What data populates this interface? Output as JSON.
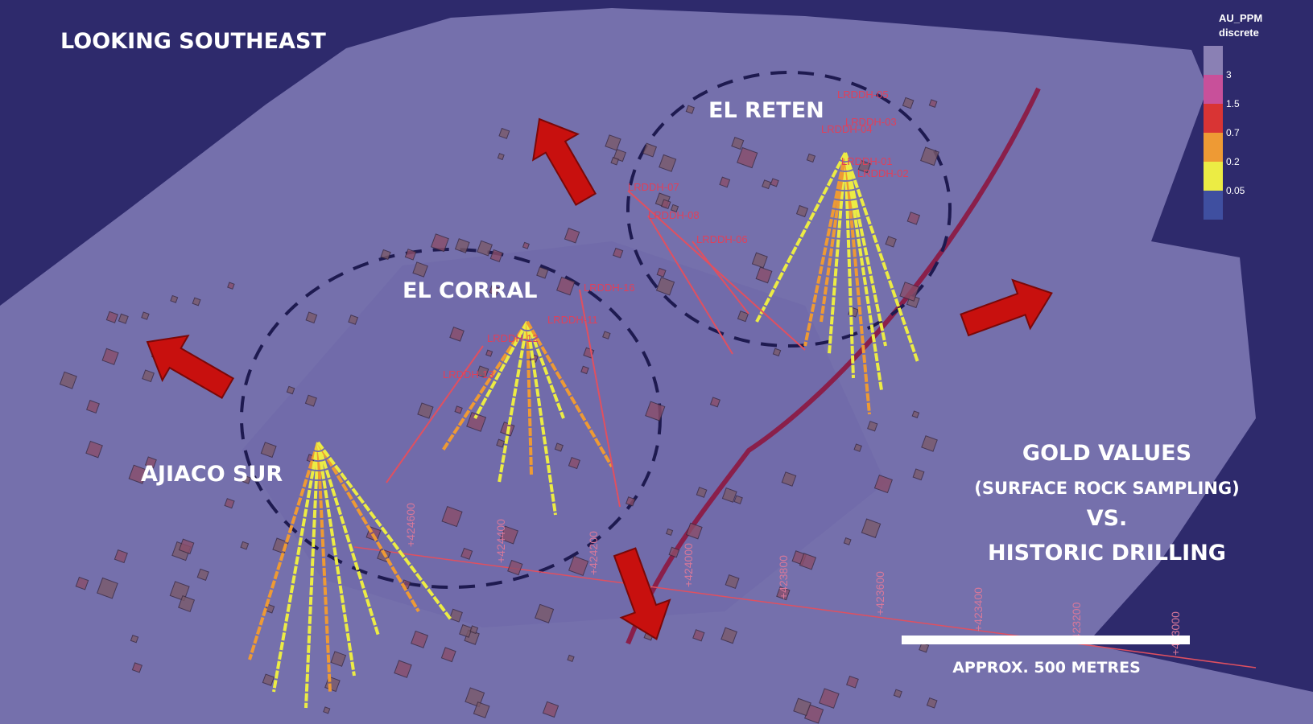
{
  "title": "LOOKING SOUTHEAST",
  "areas": [
    {
      "label": "EL RETEN"
    },
    {
      "label": "EL CORRAL"
    },
    {
      "label": "AJIACO SUR"
    }
  ],
  "annotation": {
    "lines": [
      "GOLD VALUES",
      "(SURFACE ROCK SAMPLING)",
      "VS.",
      "HISTORIC DRILLING"
    ]
  },
  "scale_bar": {
    "label": "APPROX. 500 METRES"
  },
  "legend": {
    "title": "AU_PPM",
    "subtitle": "discrete",
    "colors": [
      "#8a80b4",
      "#c8509a",
      "#d93434",
      "#ee9a34",
      "#ecec44",
      "#3f4fa0"
    ],
    "labels": [
      "3",
      "1.5",
      "0.7",
      "0.2",
      "0.05"
    ]
  },
  "drill_holes": [
    "LRDDH-05",
    "LRDDH-03",
    "LRDDH-04",
    "LRDDH-01",
    "LRDDH-02",
    "LRDDH-07",
    "LRDDH-08",
    "LRDDH-06",
    "LRDDH-16",
    "LRDDH-11",
    "LRDDH-12",
    "LRDDH-13"
  ],
  "grid_labels": [
    "+424600",
    "+424400",
    "+424200",
    "+424000",
    "+423800",
    "+423600",
    "+423400",
    "-423200",
    "+423000"
  ]
}
